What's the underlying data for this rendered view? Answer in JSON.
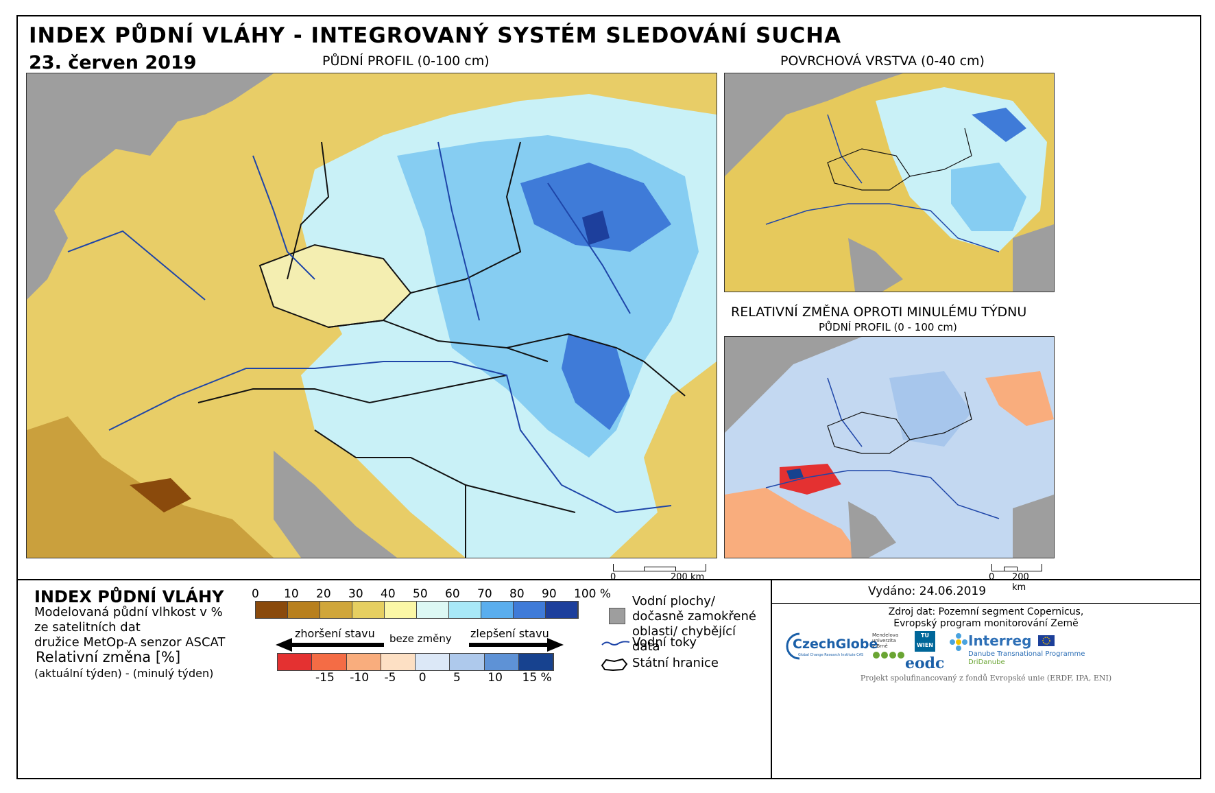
{
  "title": "INDEX PŮDNÍ VLÁHY - INTEGROVANÝ SYSTÉM SLEDOVÁNÍ SUCHA",
  "date": "23. červen 2019",
  "maps": {
    "main": {
      "heading": "PŮDNÍ PROFIL (0-100 cm)",
      "scale_start": "0",
      "scale_end": "200 km"
    },
    "surface": {
      "heading": "POVRCHOVÁ VRSTVA (0-40 cm)"
    },
    "change": {
      "heading": "RELATIVNÍ ZMĚNA OPROTI MINULÉMU TÝDNU",
      "subheading": "PŮDNÍ PROFIL (0 - 100 cm)",
      "scale_start": "0",
      "scale_end": "200 km"
    }
  },
  "legend": {
    "title": "INDEX PŮDNÍ VLÁHY",
    "desc": [
      "Modelovaná půdní vlhkost v %",
      "ze satelitních dat",
      "družice MetOp-A senzor ASCAT"
    ],
    "change_title": "Relativní změna [%]",
    "change_desc": "(aktuální týden) - (minulý týden)",
    "moisture_ticks": [
      "0",
      "10",
      "20",
      "30",
      "40",
      "50",
      "60",
      "70",
      "80",
      "90",
      "100 %"
    ],
    "moisture_colors": [
      "#8a4a0c",
      "#b8801e",
      "#d0a63a",
      "#e6cf61",
      "#fbf7a6",
      "#ddf8f4",
      "#a8e8f7",
      "#5aaeee",
      "#3f7bd8",
      "#1d3f9c"
    ],
    "change_ticks": [
      "-15",
      "-10",
      "-5",
      "0",
      "5",
      "10",
      "15 %"
    ],
    "change_colors": [
      "#e43131",
      "#f46c45",
      "#f9ad7d",
      "#fde0c4",
      "#dce8f7",
      "#aec9ec",
      "#5e92d6",
      "#17428f"
    ],
    "worse": "zhoršení stavu",
    "none": "beze změny",
    "better": "zlepšení stavu"
  },
  "symbols": {
    "water": "Vodní plochy/ dočasně zamokřené oblasti/ chybějící data",
    "rivers": "Vodní toky",
    "borders": "Státní hranice"
  },
  "issued": "Vydáno: 24.06.2019",
  "source": [
    "Zdroj dat: Pozemní segment Copernicus,",
    "Evropský program monitorování Země"
  ],
  "logos": {
    "czechglobe": "CzechGlobe",
    "czechglobe_sub": "Global Change Research Institute CAS",
    "mendel": [
      "Mendelova",
      "univerzita",
      "v Brně"
    ],
    "tuwien": "TU WIEN",
    "eodc": "eodc",
    "interreg": "Interreg",
    "interreg_sub": [
      "Danube Transnational Programme",
      "DriDanube"
    ]
  },
  "footer": "Projekt spolufinancovaný z fondů Evropské unie (ERDF, IPA, ENI)"
}
